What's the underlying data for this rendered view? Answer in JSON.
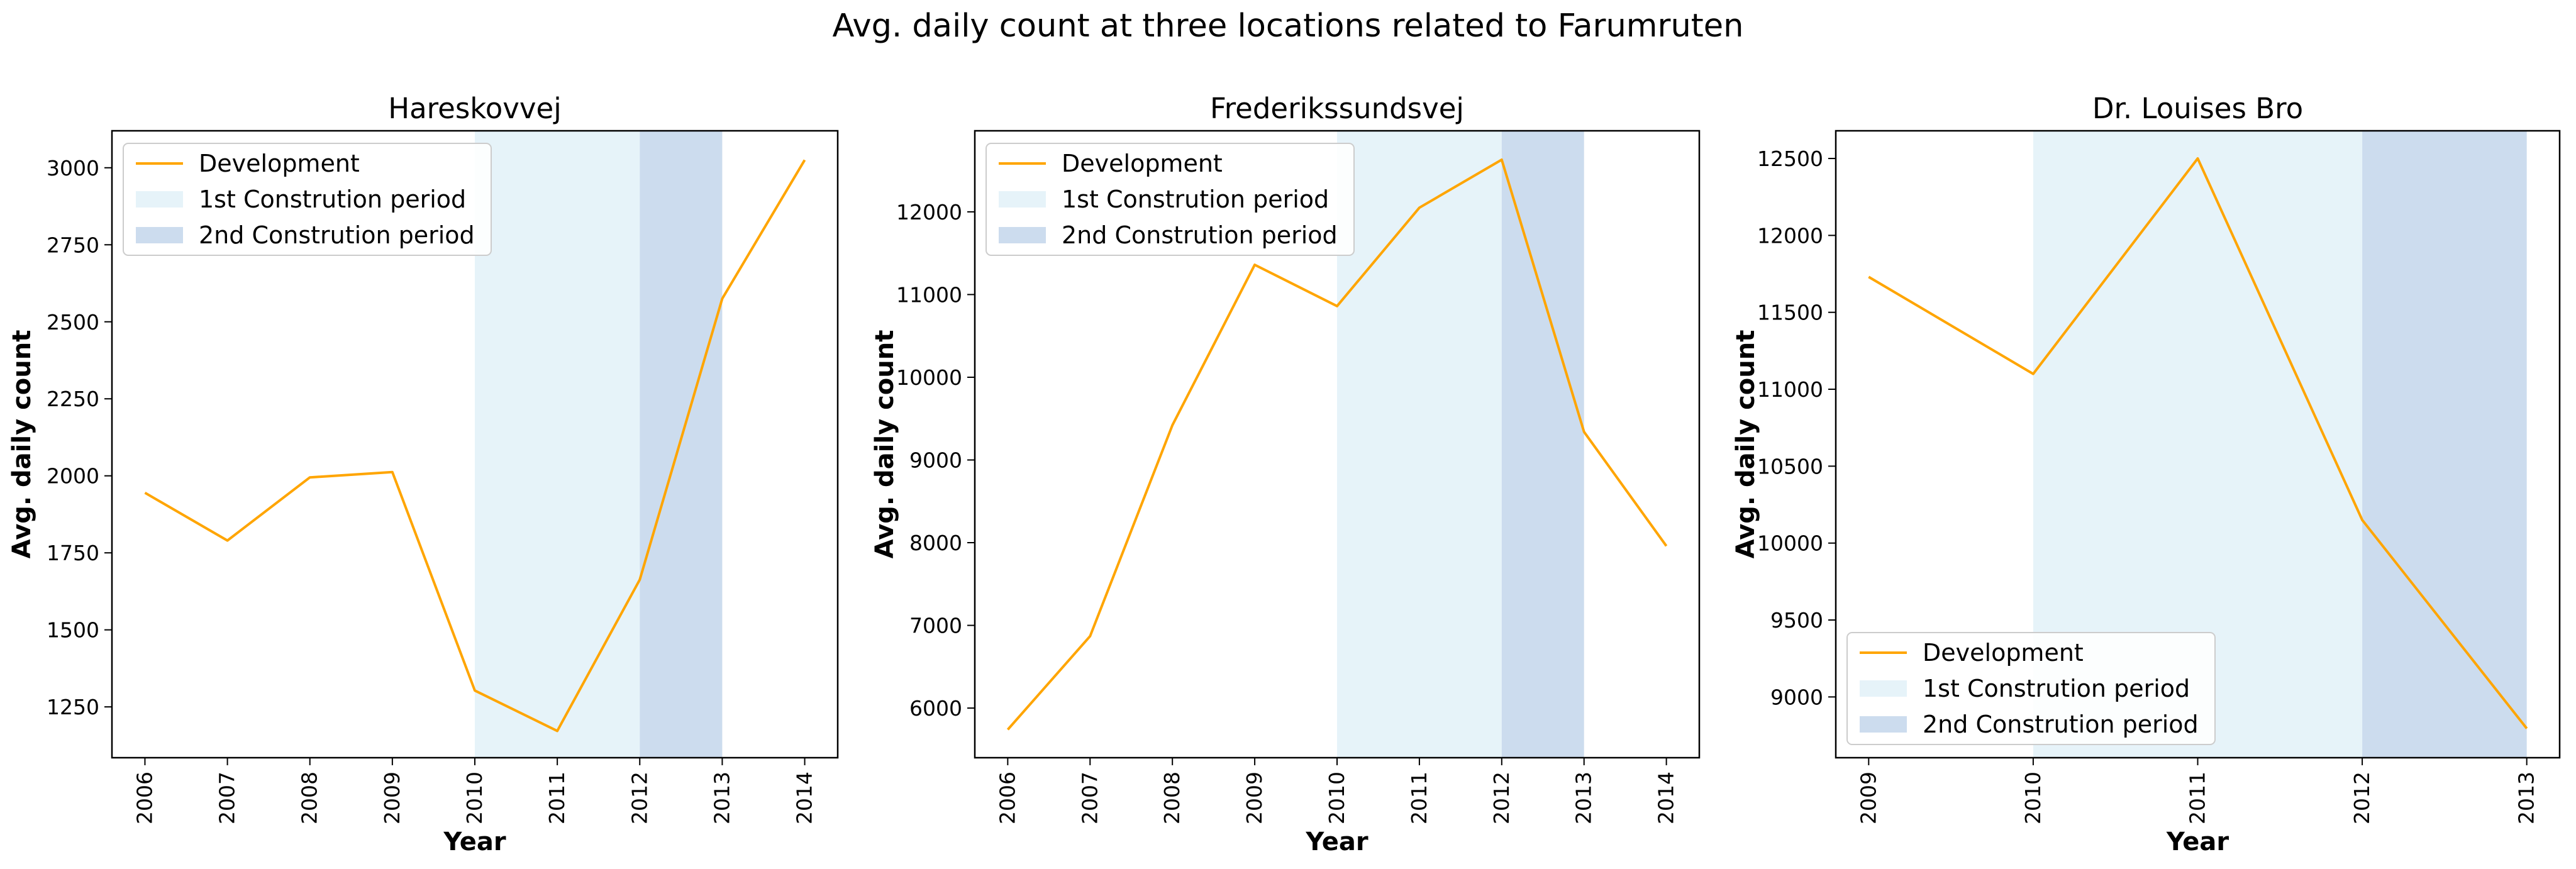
{
  "figure": {
    "title": "Avg. daily count at three locations related to Farumruten"
  },
  "colors": {
    "line": "#ffa500",
    "period1": "#e6f3f9",
    "period2": "#ccdcee",
    "axes": "#000000",
    "background": "#ffffff"
  },
  "legend_labels": [
    "Development",
    "1st Constrution period",
    "2nd Constrution period"
  ],
  "chart_data": [
    {
      "type": "line",
      "title": "Hareskovvej",
      "xlabel": "Year",
      "ylabel": "Avg. daily count",
      "x": [
        2006,
        2007,
        2008,
        2009,
        2010,
        2011,
        2012,
        2013,
        2014
      ],
      "xlim": [
        2005.6,
        2014.4
      ],
      "ylim": [
        1085,
        3120
      ],
      "xticks": [
        2006,
        2007,
        2008,
        2009,
        2010,
        2011,
        2012,
        2013,
        2014
      ],
      "yticks": [
        1250,
        1500,
        1750,
        2000,
        2250,
        2500,
        2750,
        3000
      ],
      "series": [
        {
          "name": "Development",
          "values": [
            1945,
            1790,
            1995,
            2012,
            1303,
            1172,
            1663,
            2575,
            3025
          ]
        }
      ],
      "periods": [
        {
          "name": "1st Constrution period",
          "start": 2010,
          "end": 2012
        },
        {
          "name": "2nd Constrution period",
          "start": 2012,
          "end": 2013
        }
      ],
      "legend_position": "upper left",
      "grid": false
    },
    {
      "type": "line",
      "title": "Frederikssundsvej",
      "xlabel": "Year",
      "ylabel": "Avg. daily count",
      "x": [
        2006,
        2007,
        2008,
        2009,
        2010,
        2011,
        2012,
        2013,
        2014
      ],
      "xlim": [
        2005.6,
        2014.4
      ],
      "ylim": [
        5400,
        12980
      ],
      "xticks": [
        2006,
        2007,
        2008,
        2009,
        2010,
        2011,
        2012,
        2013,
        2014
      ],
      "yticks": [
        6000,
        7000,
        8000,
        9000,
        10000,
        11000,
        12000
      ],
      "series": [
        {
          "name": "Development",
          "values": [
            5740,
            6870,
            9420,
            11360,
            10860,
            12050,
            12630,
            9340,
            7960
          ]
        }
      ],
      "periods": [
        {
          "name": "1st Constrution period",
          "start": 2010,
          "end": 2012
        },
        {
          "name": "2nd Constrution period",
          "start": 2012,
          "end": 2013
        }
      ],
      "legend_position": "upper left",
      "grid": false
    },
    {
      "type": "line",
      "title": "Dr. Louises Bro",
      "xlabel": "Year",
      "ylabel": "Avg. daily count",
      "x": [
        2009,
        2010,
        2011,
        2012,
        2013
      ],
      "xlim": [
        2008.8,
        2013.2
      ],
      "ylim": [
        8605,
        12680
      ],
      "xticks": [
        2009,
        2010,
        2011,
        2012,
        2013
      ],
      "yticks": [
        9000,
        9500,
        10000,
        10500,
        11000,
        11500,
        12000,
        12500
      ],
      "series": [
        {
          "name": "Development",
          "values": [
            11730,
            11100,
            12500,
            10150,
            8795
          ]
        }
      ],
      "periods": [
        {
          "name": "1st Constrution period",
          "start": 2010,
          "end": 2012
        },
        {
          "name": "2nd Constrution period",
          "start": 2012,
          "end": 2013
        }
      ],
      "legend_position": "lower left",
      "grid": false
    }
  ]
}
